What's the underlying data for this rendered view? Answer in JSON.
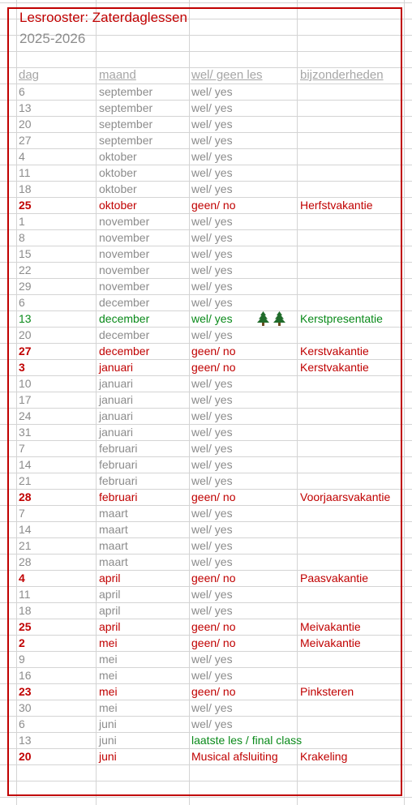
{
  "title": "Lesrooster: Zaterdaglessen",
  "year": "2025-2026",
  "headers": {
    "dag": "dag",
    "maand": "maand",
    "les": "wel/ geen les",
    "bijzonderheden": "bijzonderheden"
  },
  "colors": {
    "red": "#c00000",
    "green": "#0a8a1a",
    "grey": "#8c8c8c"
  },
  "rows": [
    {
      "dag": "6",
      "maand": "september",
      "les": "wel/ yes",
      "note": "",
      "status": "yes"
    },
    {
      "dag": "13",
      "maand": "september",
      "les": "wel/ yes",
      "note": "",
      "status": "yes"
    },
    {
      "dag": "20",
      "maand": "september",
      "les": "wel/ yes",
      "note": "",
      "status": "yes"
    },
    {
      "dag": "27",
      "maand": "september",
      "les": "wel/ yes",
      "note": "",
      "status": "yes"
    },
    {
      "dag": "4",
      "maand": "oktober",
      "les": "wel/ yes",
      "note": "",
      "status": "yes"
    },
    {
      "dag": "11",
      "maand": "oktober",
      "les": "wel/ yes",
      "note": "",
      "status": "yes"
    },
    {
      "dag": "18",
      "maand": "oktober",
      "les": "wel/ yes",
      "note": "",
      "status": "yes"
    },
    {
      "dag": "25",
      "maand": "oktober",
      "les": "geen/ no",
      "note": "Herfstvakantie",
      "status": "no"
    },
    {
      "dag": "1",
      "maand": "november",
      "les": "wel/ yes",
      "note": "",
      "status": "yes"
    },
    {
      "dag": "8",
      "maand": "november",
      "les": "wel/ yes",
      "note": "",
      "status": "yes"
    },
    {
      "dag": "15",
      "maand": "november",
      "les": "wel/ yes",
      "note": "",
      "status": "yes"
    },
    {
      "dag": "22",
      "maand": "november",
      "les": "wel/ yes",
      "note": "",
      "status": "yes"
    },
    {
      "dag": "29",
      "maand": "november",
      "les": "wel/ yes",
      "note": "",
      "status": "yes"
    },
    {
      "dag": "6",
      "maand": "december",
      "les": "wel/ yes",
      "note": "",
      "status": "yes"
    },
    {
      "dag": "13",
      "maand": "december",
      "les": "wel/ yes",
      "note": "Kerstpresentatie",
      "status": "special",
      "icons": [
        "christmas-tree-icon",
        "christmas-tree-icon"
      ]
    },
    {
      "dag": "20",
      "maand": "december",
      "les": "wel/ yes",
      "note": "",
      "status": "yes"
    },
    {
      "dag": "27",
      "maand": "december",
      "les": "geen/ no",
      "note": "Kerstvakantie",
      "status": "no"
    },
    {
      "dag": "3",
      "maand": "januari",
      "les": "geen/ no",
      "note": "Kerstvakantie",
      "status": "no"
    },
    {
      "dag": "10",
      "maand": "januari",
      "les": "wel/ yes",
      "note": "",
      "status": "yes"
    },
    {
      "dag": "17",
      "maand": "januari",
      "les": "wel/ yes",
      "note": "",
      "status": "yes"
    },
    {
      "dag": "24",
      "maand": "januari",
      "les": "wel/ yes",
      "note": "",
      "status": "yes"
    },
    {
      "dag": "31",
      "maand": "januari",
      "les": "wel/ yes",
      "note": "",
      "status": "yes"
    },
    {
      "dag": "7",
      "maand": "februari",
      "les": "wel/ yes",
      "note": "",
      "status": "yes"
    },
    {
      "dag": "14",
      "maand": "februari",
      "les": "wel/ yes",
      "note": "",
      "status": "yes"
    },
    {
      "dag": "21",
      "maand": "februari",
      "les": "wel/ yes",
      "note": "",
      "status": "yes"
    },
    {
      "dag": "28",
      "maand": "februari",
      "les": "geen/ no",
      "note": "Voorjaarsvakantie",
      "status": "no"
    },
    {
      "dag": "7",
      "maand": "maart",
      "les": "wel/ yes",
      "note": "",
      "status": "yes"
    },
    {
      "dag": "14",
      "maand": "maart",
      "les": "wel/ yes",
      "note": "",
      "status": "yes"
    },
    {
      "dag": "21",
      "maand": "maart",
      "les": "wel/ yes",
      "note": "",
      "status": "yes"
    },
    {
      "dag": "28",
      "maand": "maart",
      "les": "wel/ yes",
      "note": "",
      "status": "yes"
    },
    {
      "dag": "4",
      "maand": "april",
      "les": "geen/ no",
      "note": "Paasvakantie",
      "status": "no"
    },
    {
      "dag": "11",
      "maand": "april",
      "les": "wel/ yes",
      "note": "",
      "status": "yes"
    },
    {
      "dag": "18",
      "maand": "april",
      "les": "wel/ yes",
      "note": "",
      "status": "yes"
    },
    {
      "dag": "25",
      "maand": "april",
      "les": "geen/ no",
      "note": "Meivakantie",
      "status": "no"
    },
    {
      "dag": "2",
      "maand": "mei",
      "les": "geen/ no",
      "note": "Meivakantie",
      "status": "no"
    },
    {
      "dag": "9",
      "maand": "mei",
      "les": "wel/ yes",
      "note": "",
      "status": "yes"
    },
    {
      "dag": "16",
      "maand": "mei",
      "les": "wel/ yes",
      "note": "",
      "status": "yes"
    },
    {
      "dag": "23",
      "maand": "mei",
      "les": "geen/ no",
      "note": "Pinksteren",
      "status": "no"
    },
    {
      "dag": "30",
      "maand": "mei",
      "les": "wel/ yes",
      "note": "",
      "status": "yes"
    },
    {
      "dag": "6",
      "maand": "juni",
      "les": "wel/ yes",
      "note": "",
      "status": "yes"
    },
    {
      "dag": "13",
      "maand": "juni",
      "les": "laatste les / final class",
      "note": "",
      "status": "final"
    },
    {
      "dag": "20",
      "maand": "juni",
      "les": "Musical afsluiting",
      "note": "Krakeling",
      "status": "musical"
    }
  ]
}
